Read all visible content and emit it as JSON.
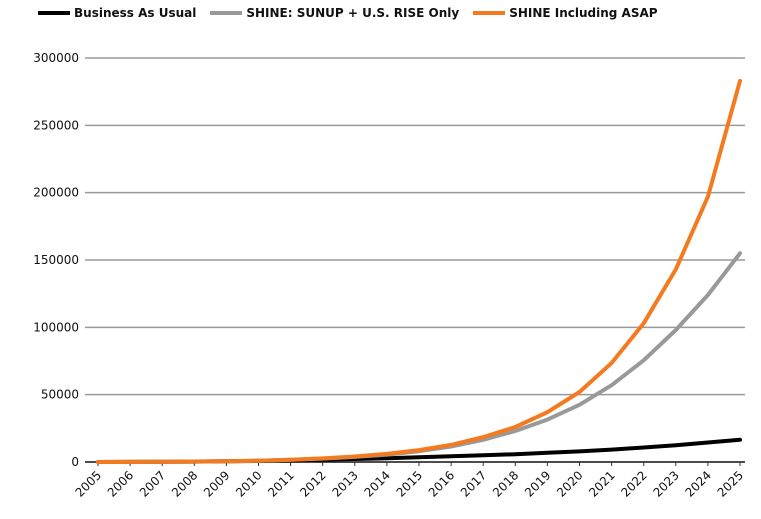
{
  "chart_data": {
    "type": "line",
    "categories": [
      "2005",
      "2006",
      "2007",
      "2008",
      "2009",
      "2010",
      "2011",
      "2012",
      "2013",
      "2014",
      "2015",
      "2016",
      "2017",
      "2018",
      "2019",
      "2020",
      "2021",
      "2022",
      "2023",
      "2024",
      "2025"
    ],
    "series": [
      {
        "name": "Business As Usual",
        "color": "#000000",
        "values": [
          0,
          50,
          150,
          300,
          500,
          800,
          1200,
          1700,
          2200,
          2800,
          3500,
          4200,
          5000,
          5800,
          6800,
          7900,
          9200,
          10800,
          12500,
          14500,
          16500
        ]
      },
      {
        "name": "SHINE: SUNUP + U.S. RISE Only",
        "color": "#999999",
        "values": [
          0,
          60,
          180,
          350,
          600,
          1000,
          1600,
          2500,
          3800,
          5500,
          8000,
          11500,
          16500,
          23000,
          31500,
          42500,
          57000,
          75500,
          98000,
          124000,
          155000
        ]
      },
      {
        "name": "SHINE Including ASAP",
        "color": "#f47a20",
        "values": [
          0,
          60,
          180,
          350,
          600,
          1000,
          1700,
          2700,
          4100,
          6000,
          8800,
          12700,
          18500,
          26000,
          37000,
          52000,
          73500,
          103000,
          143000,
          197000,
          283000
        ]
      }
    ],
    "y_ticks": [
      "0",
      "50000",
      "100000",
      "150000",
      "200000",
      "250000",
      "300000"
    ],
    "ylim": [
      0,
      300000
    ],
    "legend_position": "top",
    "grid": "horizontal"
  }
}
